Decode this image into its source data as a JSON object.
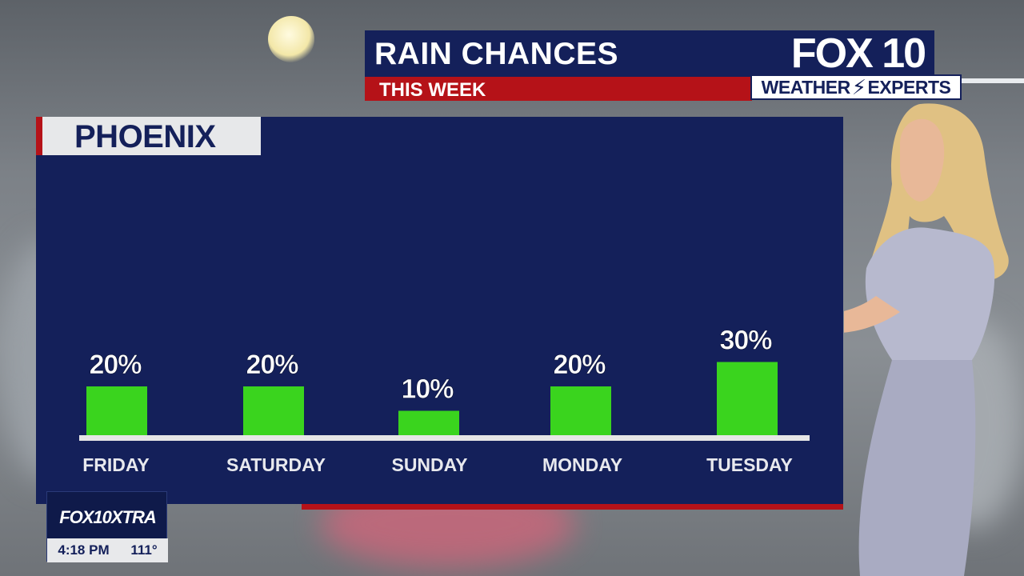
{
  "broadcast": {
    "title": "RAIN CHANCES",
    "subtitle": "THIS WEEK",
    "station_logo": "FOX 10",
    "weather_badge_left": "WEATHER",
    "weather_badge_right": "EXPERTS",
    "city": "PHOENIX",
    "bug_logo": "FOX10XTRA",
    "time": "4:18 PM",
    "temperature": "111°"
  },
  "colors": {
    "panel": "#14205a",
    "accent_red": "#b51218",
    "bar_green": "#3ad41e",
    "baseline": "#e6e6e6"
  },
  "chart_data": {
    "type": "bar",
    "title": "RAIN CHANCES",
    "subtitle": "THIS WEEK",
    "categories": [
      "FRIDAY",
      "SATURDAY",
      "SUNDAY",
      "MONDAY",
      "TUESDAY"
    ],
    "values": [
      20,
      20,
      10,
      20,
      30
    ],
    "value_labels": [
      "20%",
      "20%",
      "10%",
      "20%",
      "30%"
    ],
    "unit": "%",
    "ylim": [
      0,
      100
    ],
    "grid": false,
    "legend": "none"
  }
}
